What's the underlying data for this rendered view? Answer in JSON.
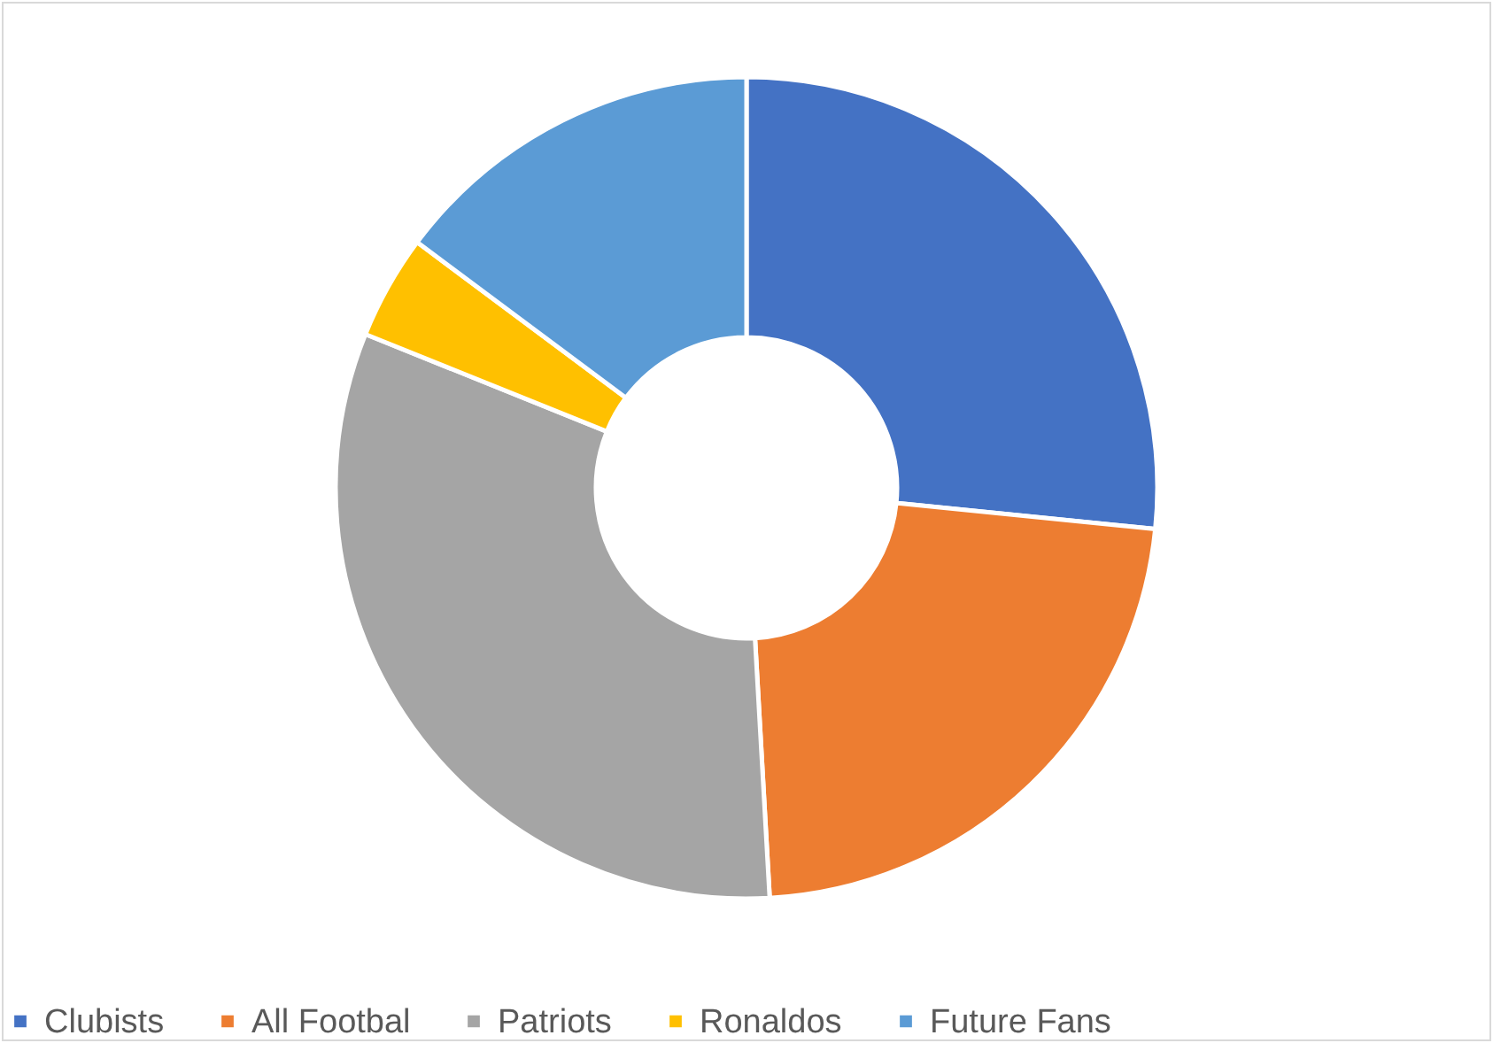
{
  "chart_data": {
    "type": "donut",
    "categories": [
      "Clubists",
      "All Footbal",
      "Patriots",
      "Ronaldos",
      "Future Fans"
    ],
    "values": [
      26.6,
      22.5,
      32.0,
      4.1,
      14.8
    ],
    "colors": [
      "#4472c4",
      "#ed7d31",
      "#a5a5a5",
      "#ffc000",
      "#5b9bd5"
    ],
    "legend": "bottom"
  }
}
